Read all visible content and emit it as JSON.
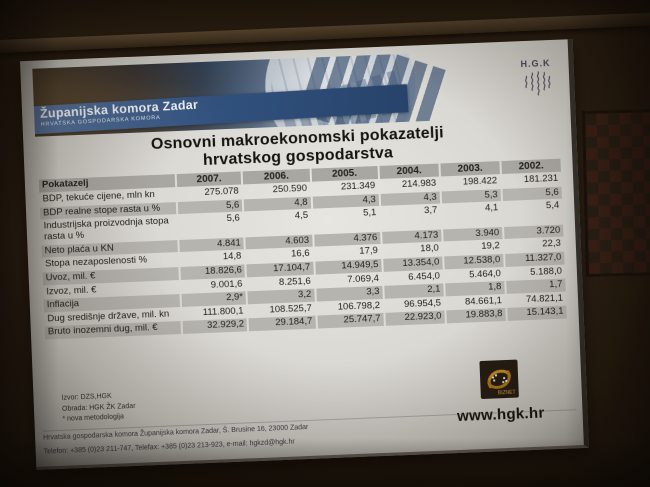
{
  "slide": {
    "banner": {
      "ribbon_title": "Županijska komora Zadar",
      "ribbon_subtitle": "HRVATSKA GOSPODARSKA KOMORA",
      "logo_text": "H.G.K"
    },
    "title_line1": "Osnovni makroekonomski pokazatelji",
    "title_line2": "hrvatskog gospodarstva",
    "table": {
      "headers": [
        "Pokatazelj",
        "2007.",
        "2006.",
        "2005.",
        "2004.",
        "2003.",
        "2002."
      ],
      "rows": [
        {
          "label": "BDP, tekuće cijene, mln kn",
          "values": [
            "275.078",
            "250.590",
            "231.349",
            "214.983",
            "198.422",
            "181.231"
          ],
          "shaded": false
        },
        {
          "label": "BDP realne stope rasta u %",
          "values": [
            "5,6",
            "4,8",
            "4,3",
            "4,3",
            "5,3",
            "5,6"
          ],
          "shaded": true
        },
        {
          "label": "Industrijska proizvodnja stopa rasta u %",
          "values": [
            "5,6",
            "4,5",
            "5,1",
            "3,7",
            "4,1",
            "5,4"
          ],
          "shaded": false
        },
        {
          "label": "Neto plaća u KN",
          "values": [
            "4.841",
            "4.603",
            "4.376",
            "4.173",
            "3.940",
            "3.720"
          ],
          "shaded": true
        },
        {
          "label": "Stopa nezaposlenosti %",
          "values": [
            "14,8",
            "16,6",
            "17,9",
            "18,0",
            "19,2",
            "22,3"
          ],
          "shaded": false
        },
        {
          "label": "Uvoz, mil. €",
          "values": [
            "18.826,6",
            "17.104,7",
            "14.949,5",
            "13.354,0",
            "12.538,0",
            "11.327,0"
          ],
          "shaded": true
        },
        {
          "label": "Izvoz, mil. €",
          "values": [
            "9.001,6",
            "8.251,6",
            "7.069,4",
            "6.454,0",
            "5.464,0",
            "5.188,0"
          ],
          "shaded": false
        },
        {
          "label": "Inflacija",
          "values": [
            "2,9*",
            "3,2",
            "3,3",
            "2,1",
            "1,8",
            "1,7"
          ],
          "shaded": true
        },
        {
          "label": "Dug središnje države, mil. kn",
          "values": [
            "111.800,1",
            "108.525,7",
            "106.798,2",
            "96.954,5",
            "84.661,1",
            "74.821,1"
          ],
          "shaded": false
        },
        {
          "label": "Bruto inozemni dug, mil. €",
          "values": [
            "32.929,2",
            "29.184,7",
            "25.747,7",
            "22.923,0",
            "19.883,8",
            "15.143,1"
          ],
          "shaded": true
        }
      ]
    },
    "source": {
      "line1": "Izvor: DZS,HGK",
      "line2": "Obrada: HGK ŽK Zadar",
      "line3": "* nova metodologija"
    },
    "biznet_label": "BIZNET",
    "website": "www.hgk.hr",
    "footer": {
      "address": "Hrvatska gospodarska komora Županijska komora Zadar, Š. Brusine 16, 23000 Zadar",
      "contact": "Telefon: +385 (0)23 211-747, Telefax: +385 (0)23 213-923, e-mail: hgkzd@hgk.hr"
    }
  },
  "colors": {
    "screen": "#e7e6e1",
    "shade": "#b6b4af",
    "header_shade": "#a9a7a2",
    "ribbon_blue": "#31517e",
    "wall": "#2e2215",
    "biznet_gold": "#c08a20"
  }
}
